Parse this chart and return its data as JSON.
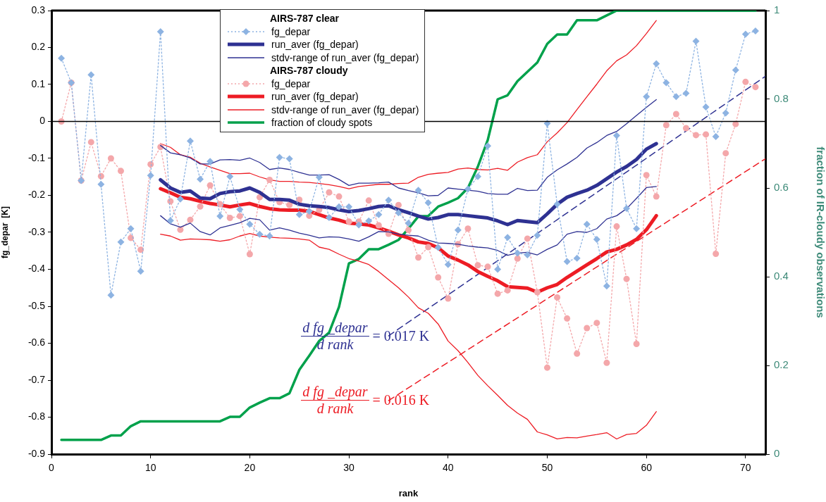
{
  "chart_data": {
    "type": "line",
    "xlabel": "rank",
    "ylabel": "fg_depar  [K]",
    "y2label": "fraction of IR-cloudy observations",
    "legend_title": [
      "AIRS-787 clear",
      "AIRS-787 cloudy"
    ],
    "legend": "top",
    "grid": false,
    "xlim": [
      0,
      72
    ],
    "xticks": [
      0,
      10,
      20,
      30,
      40,
      50,
      60,
      70
    ],
    "ylim": [
      -0.9,
      0.3
    ],
    "yticks": [
      -0.9,
      -0.8,
      -0.7,
      -0.6,
      -0.5,
      -0.4,
      -0.3,
      -0.2,
      -0.1,
      0,
      0.1,
      0.2,
      0.3
    ],
    "y2lim": [
      0,
      1
    ],
    "y2ticks": [
      0,
      0.2,
      0.4,
      0.6,
      0.8,
      1
    ],
    "ref_lines": [
      {
        "axis": "y",
        "value": 0,
        "color": "#000000"
      }
    ],
    "annotations": [
      "d fg _depar d rank = 0.017 K",
      "d fg _depar d rank = 0.016 K"
    ],
    "x": [
      1,
      2,
      3,
      4,
      5,
      6,
      7,
      8,
      9,
      10,
      11,
      12,
      13,
      14,
      15,
      16,
      17,
      18,
      19,
      20,
      21,
      22,
      23,
      24,
      25,
      26,
      27,
      28,
      29,
      30,
      31,
      32,
      33,
      34,
      35,
      36,
      37,
      38,
      39,
      40,
      41,
      42,
      43,
      44,
      45,
      46,
      47,
      48,
      49,
      50,
      51,
      52,
      53,
      54,
      55,
      56,
      57,
      58,
      59,
      60,
      61,
      62,
      63,
      64,
      65,
      66,
      67,
      68,
      69,
      70,
      71
    ],
    "series": [
      {
        "name": "fg_depar",
        "color": "#8db3e2",
        "marker": "diamond",
        "line_style": "dotted",
        "values": [
          0.171,
          0.105,
          -0.16,
          0.126,
          -0.17,
          -0.47,
          -0.326,
          -0.29,
          -0.405,
          -0.146,
          0.243,
          -0.268,
          -0.21,
          -0.053,
          -0.156,
          -0.108,
          -0.256,
          -0.149,
          -0.238,
          -0.278,
          -0.305,
          -0.31,
          -0.097,
          -0.101,
          -0.252,
          -0.243,
          -0.151,
          -0.26,
          -0.231,
          -0.231,
          -0.28,
          -0.269,
          -0.252,
          -0.213,
          -0.247,
          -0.275,
          -0.186,
          -0.22,
          -0.341,
          -0.387,
          -0.294,
          -0.183,
          -0.149,
          -0.066,
          -0.4,
          -0.314,
          -0.356,
          -0.361,
          -0.308,
          -0.005,
          -0.224,
          -0.379,
          -0.37,
          -0.278,
          -0.319,
          -0.445,
          -0.038,
          -0.235,
          -0.29,
          0.067,
          0.156,
          0.105,
          0.067,
          0.076,
          0.217,
          0.039,
          -0.041,
          0.023,
          0.139,
          0.236,
          0.245
        ]
      },
      {
        "name": "run_aver (fg_depar)",
        "color": "#2e3192",
        "marker": "none",
        "line_style": "solid",
        "x": [
          11,
          12,
          13,
          14,
          15,
          16,
          17,
          18,
          19,
          20,
          21,
          22,
          23,
          24,
          25,
          26,
          27,
          28,
          29,
          30,
          31,
          32,
          33,
          34,
          35,
          36,
          37,
          38,
          39,
          40,
          41,
          42,
          43,
          44,
          45,
          46,
          47,
          48,
          49,
          50,
          51,
          52,
          53,
          54,
          55,
          56,
          57,
          58,
          59,
          60,
          61
        ],
        "values": [
          -0.158,
          -0.18,
          -0.192,
          -0.188,
          -0.207,
          -0.209,
          -0.195,
          -0.19,
          -0.188,
          -0.18,
          -0.192,
          -0.211,
          -0.211,
          -0.213,
          -0.224,
          -0.228,
          -0.23,
          -0.233,
          -0.239,
          -0.244,
          -0.241,
          -0.236,
          -0.23,
          -0.228,
          -0.239,
          -0.247,
          -0.256,
          -0.264,
          -0.26,
          -0.252,
          -0.252,
          -0.255,
          -0.258,
          -0.261,
          -0.269,
          -0.279,
          -0.268,
          -0.271,
          -0.274,
          -0.25,
          -0.224,
          -0.205,
          -0.195,
          -0.186,
          -0.173,
          -0.155,
          -0.137,
          -0.122,
          -0.103,
          -0.075,
          -0.06
        ]
      },
      {
        "name": "stdv-range of run_aver (fg_depar)",
        "color": "#2e3192",
        "marker": "none",
        "line_style": "solid",
        "x": [
          11,
          12,
          13,
          14,
          15,
          16,
          17,
          18,
          19,
          20,
          21,
          22,
          23,
          24,
          25,
          26,
          27,
          28,
          29,
          30,
          31,
          32,
          33,
          34,
          35,
          36,
          37,
          38,
          39,
          40,
          41,
          42,
          43,
          44,
          45,
          46,
          47,
          48,
          49,
          50,
          51,
          52,
          53,
          54,
          55,
          56,
          57,
          58,
          59,
          60,
          61
        ],
        "values": [
          -0.065,
          -0.085,
          -0.09,
          -0.099,
          -0.115,
          -0.115,
          -0.104,
          -0.103,
          -0.105,
          -0.099,
          -0.111,
          -0.13,
          -0.126,
          -0.13,
          -0.138,
          -0.145,
          -0.145,
          -0.144,
          -0.157,
          -0.173,
          -0.167,
          -0.167,
          -0.166,
          -0.164,
          -0.18,
          -0.187,
          -0.193,
          -0.201,
          -0.2,
          -0.18,
          -0.183,
          -0.186,
          -0.189,
          -0.195,
          -0.197,
          -0.197,
          -0.181,
          -0.187,
          -0.186,
          -0.151,
          -0.131,
          -0.115,
          -0.097,
          -0.072,
          -0.057,
          -0.038,
          -0.027,
          -0.006,
          0.016,
          0.038,
          0.059
        ]
      },
      {
        "color": "#2e3192",
        "marker": "none",
        "line_style": "solid",
        "x": [
          11,
          12,
          13,
          14,
          15,
          16,
          17,
          18,
          19,
          20,
          21,
          22,
          23,
          24,
          25,
          26,
          27,
          28,
          29,
          30,
          31,
          32,
          33,
          34,
          35,
          36,
          37,
          38,
          39,
          40,
          41,
          42,
          43,
          44,
          45,
          46,
          47,
          48,
          49,
          50,
          51,
          52,
          53,
          54,
          55,
          56,
          57,
          58,
          59,
          60,
          61
        ],
        "values": [
          -0.255,
          -0.277,
          -0.286,
          -0.275,
          -0.298,
          -0.307,
          -0.288,
          -0.281,
          -0.274,
          -0.262,
          -0.266,
          -0.294,
          -0.288,
          -0.294,
          -0.302,
          -0.308,
          -0.315,
          -0.312,
          -0.313,
          -0.318,
          -0.324,
          -0.312,
          -0.298,
          -0.299,
          -0.305,
          -0.308,
          -0.31,
          -0.321,
          -0.329,
          -0.33,
          -0.332,
          -0.337,
          -0.34,
          -0.342,
          -0.349,
          -0.362,
          -0.356,
          -0.354,
          -0.361,
          -0.346,
          -0.334,
          -0.305,
          -0.298,
          -0.3,
          -0.29,
          -0.264,
          -0.255,
          -0.236,
          -0.208,
          -0.179,
          -0.176
        ]
      },
      {
        "name": "fg_depar",
        "color": "#f4a7aa",
        "marker": "circle",
        "line_style": "dotted",
        "values": [
          0.0,
          0.105,
          -0.16,
          -0.056,
          -0.148,
          -0.1,
          -0.134,
          -0.315,
          -0.347,
          -0.116,
          -0.069,
          -0.216,
          -0.293,
          -0.266,
          -0.23,
          -0.173,
          -0.224,
          -0.261,
          -0.256,
          -0.359,
          -0.205,
          -0.158,
          -0.218,
          -0.226,
          -0.212,
          -0.255,
          -0.239,
          -0.192,
          -0.203,
          -0.271,
          -0.271,
          -0.214,
          -0.281,
          -0.304,
          -0.226,
          -0.294,
          -0.368,
          -0.34,
          -0.422,
          -0.479,
          -0.332,
          -0.29,
          -0.389,
          -0.393,
          -0.466,
          -0.457,
          -0.371,
          -0.317,
          -0.462,
          -0.666,
          -0.476,
          -0.533,
          -0.628,
          -0.559,
          -0.545,
          -0.653,
          -0.284,
          -0.426,
          -0.602,
          -0.145,
          -0.203,
          -0.01,
          0.02,
          -0.018,
          -0.037,
          -0.035,
          -0.358,
          -0.086,
          -0.007,
          0.107,
          0.093
        ]
      },
      {
        "name": "run_aver (fg_depar)",
        "color": "#ed1c24",
        "marker": "none",
        "line_style": "solid",
        "x": [
          11,
          12,
          13,
          14,
          15,
          16,
          17,
          18,
          19,
          20,
          21,
          22,
          23,
          24,
          25,
          26,
          27,
          28,
          29,
          30,
          31,
          32,
          33,
          34,
          35,
          36,
          37,
          38,
          39,
          40,
          41,
          42,
          43,
          44,
          45,
          46,
          47,
          48,
          49,
          50,
          51,
          52,
          53,
          54,
          55,
          56,
          57,
          58,
          59,
          60,
          61
        ],
        "values": [
          -0.182,
          -0.193,
          -0.205,
          -0.209,
          -0.216,
          -0.222,
          -0.226,
          -0.231,
          -0.226,
          -0.222,
          -0.23,
          -0.236,
          -0.239,
          -0.24,
          -0.24,
          -0.243,
          -0.252,
          -0.261,
          -0.267,
          -0.275,
          -0.277,
          -0.28,
          -0.288,
          -0.297,
          -0.307,
          -0.315,
          -0.326,
          -0.33,
          -0.342,
          -0.364,
          -0.375,
          -0.388,
          -0.406,
          -0.419,
          -0.431,
          -0.447,
          -0.449,
          -0.451,
          -0.462,
          -0.45,
          -0.441,
          -0.422,
          -0.405,
          -0.388,
          -0.371,
          -0.353,
          -0.346,
          -0.334,
          -0.319,
          -0.293,
          -0.255
        ]
      },
      {
        "name": "stdv-range of run_aver (fg_depar)",
        "color": "#ed1c24",
        "marker": "none",
        "line_style": "solid",
        "x": [
          11,
          12,
          13,
          14,
          15,
          16,
          17,
          18,
          19,
          20,
          21,
          22,
          23,
          24,
          25,
          26,
          27,
          28,
          29,
          30,
          31,
          32,
          33,
          34,
          35,
          36,
          37,
          38,
          39,
          40,
          41,
          42,
          43,
          44,
          45,
          46,
          47,
          48,
          49,
          50,
          51,
          52,
          53,
          54,
          55,
          56,
          57,
          58,
          59,
          60,
          61
        ],
        "values": [
          -0.06,
          -0.07,
          -0.09,
          -0.097,
          -0.113,
          -0.123,
          -0.132,
          -0.141,
          -0.141,
          -0.14,
          -0.15,
          -0.158,
          -0.162,
          -0.162,
          -0.164,
          -0.165,
          -0.168,
          -0.171,
          -0.176,
          -0.182,
          -0.176,
          -0.173,
          -0.17,
          -0.17,
          -0.168,
          -0.167,
          -0.151,
          -0.143,
          -0.14,
          -0.138,
          -0.129,
          -0.126,
          -0.13,
          -0.131,
          -0.127,
          -0.132,
          -0.11,
          -0.098,
          -0.09,
          -0.055,
          -0.031,
          -0.003,
          0.032,
          0.067,
          0.101,
          0.137,
          0.164,
          0.18,
          0.205,
          0.238,
          0.273
        ]
      },
      {
        "color": "#ed1c24",
        "marker": "none",
        "line_style": "solid",
        "x": [
          11,
          12,
          13,
          14,
          15,
          16,
          17,
          18,
          19,
          20,
          21,
          22,
          23,
          24,
          25,
          26,
          27,
          28,
          29,
          30,
          31,
          32,
          33,
          34,
          35,
          36,
          37,
          38,
          39,
          40,
          41,
          42,
          43,
          44,
          45,
          46,
          47,
          48,
          49,
          50,
          51,
          52,
          53,
          54,
          55,
          56,
          57,
          58,
          59,
          60,
          61
        ],
        "values": [
          -0.305,
          -0.31,
          -0.321,
          -0.318,
          -0.319,
          -0.32,
          -0.324,
          -0.32,
          -0.31,
          -0.303,
          -0.31,
          -0.313,
          -0.315,
          -0.316,
          -0.318,
          -0.321,
          -0.34,
          -0.346,
          -0.359,
          -0.371,
          -0.378,
          -0.387,
          -0.406,
          -0.428,
          -0.45,
          -0.475,
          -0.504,
          -0.519,
          -0.548,
          -0.594,
          -0.62,
          -0.652,
          -0.687,
          -0.715,
          -0.741,
          -0.768,
          -0.789,
          -0.806,
          -0.84,
          -0.848,
          -0.859,
          -0.855,
          -0.856,
          -0.851,
          -0.847,
          -0.842,
          -0.859,
          -0.847,
          -0.844,
          -0.822,
          -0.785
        ]
      },
      {
        "name": "fraction of cloudy spots",
        "color": "#00a14b",
        "marker": "none",
        "line_style": "solid",
        "axis": "y2",
        "values": [
          0.032,
          0.032,
          0.032,
          0.032,
          0.032,
          0.042,
          0.042,
          0.063,
          0.074,
          0.074,
          0.074,
          0.074,
          0.074,
          0.074,
          0.074,
          0.074,
          0.074,
          0.084,
          0.084,
          0.105,
          0.116,
          0.126,
          0.126,
          0.137,
          0.19,
          0.222,
          0.255,
          0.274,
          0.332,
          0.43,
          0.44,
          0.462,
          0.462,
          0.472,
          0.483,
          0.508,
          0.536,
          0.537,
          0.558,
          0.567,
          0.577,
          0.6,
          0.648,
          0.708,
          0.8,
          0.809,
          0.841,
          0.862,
          0.883,
          0.925,
          0.946,
          0.946,
          0.978,
          0.978,
          0.978,
          0.989,
          1,
          1,
          1,
          1,
          1,
          1,
          1,
          1,
          1,
          1,
          1,
          1,
          1,
          1,
          1
        ]
      },
      {
        "color": "#2e3192",
        "marker": "none",
        "line_style": "dashed",
        "x": [
          34,
          72
        ],
        "values": [
          -0.58,
          0.122
        ]
      },
      {
        "color": "#ed1c24",
        "marker": "none",
        "line_style": "dashed",
        "x": [
          34,
          72
        ],
        "values": [
          -0.755,
          -0.101
        ]
      }
    ]
  }
}
